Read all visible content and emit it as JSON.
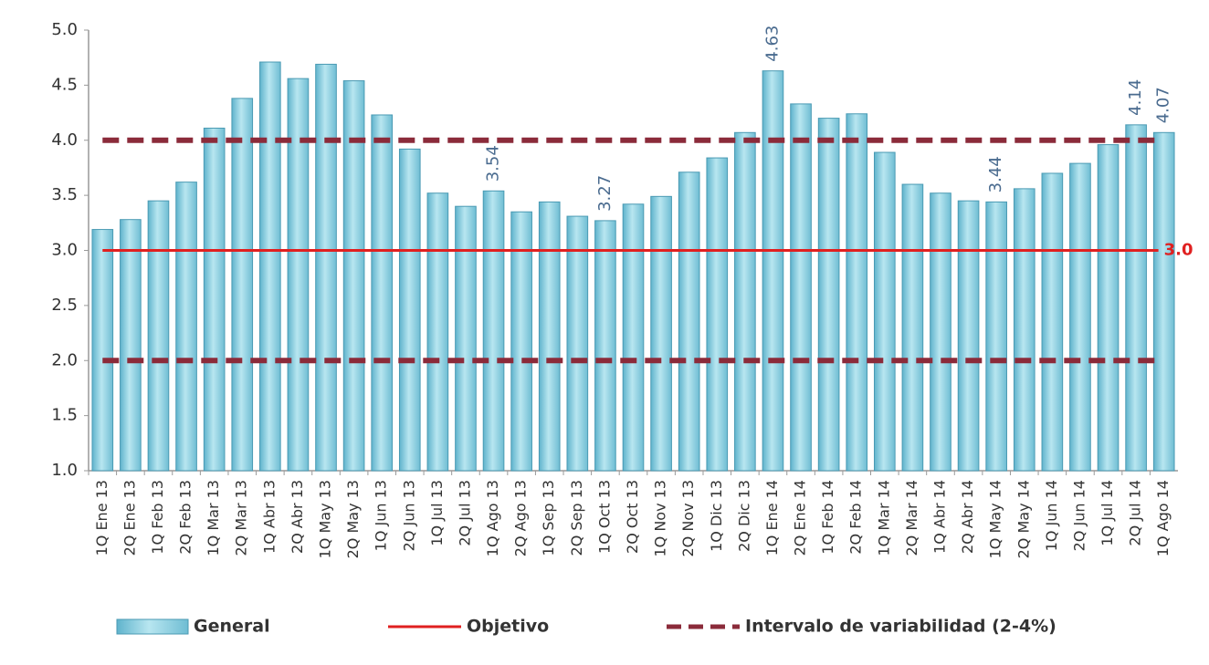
{
  "chart_data": {
    "type": "bar",
    "categories": [
      "1Q Ene 13",
      "2Q Ene 13",
      "1Q Feb 13",
      "2Q Feb 13",
      "1Q Mar 13",
      "2Q Mar 13",
      "1Q Abr 13",
      "2Q Abr 13",
      "1Q May 13",
      "2Q May 13",
      "1Q Jun 13",
      "2Q Jun 13",
      "1Q Jul 13",
      "2Q Jul 13",
      "1Q Ago 13",
      "2Q Ago 13",
      "1Q Sep 13",
      "2Q Sep 13",
      "1Q Oct 13",
      "2Q Oct 13",
      "1Q Nov 13",
      "2Q Nov 13",
      "1Q Dic 13",
      "2Q Dic 13",
      "1Q Ene 14",
      "2Q Ene 14",
      "1Q Feb 14",
      "2Q Feb 14",
      "1Q Mar 14",
      "2Q Mar 14",
      "1Q Abr 14",
      "2Q Abr 14",
      "1Q May 14",
      "2Q May 14",
      "1Q Jun 14",
      "2Q Jun 14",
      "1Q Jul 14",
      "2Q Jul 14",
      "1Q Ago 14"
    ],
    "series": [
      {
        "name": "General",
        "color": "#7cc8dc",
        "values": [
          3.19,
          3.28,
          3.45,
          3.62,
          4.11,
          4.38,
          4.71,
          4.56,
          4.69,
          4.54,
          4.23,
          3.92,
          3.52,
          3.4,
          3.54,
          3.35,
          3.44,
          3.31,
          3.27,
          3.42,
          3.49,
          3.71,
          3.84,
          4.07,
          4.63,
          4.33,
          4.2,
          4.24,
          3.89,
          3.6,
          3.52,
          3.45,
          3.44,
          3.56,
          3.7,
          3.79,
          3.96,
          4.14,
          4.07
        ],
        "value_labels": [
          null,
          null,
          null,
          null,
          null,
          null,
          null,
          null,
          null,
          null,
          null,
          null,
          null,
          null,
          "3.54",
          null,
          null,
          null,
          "3.27",
          null,
          null,
          null,
          null,
          null,
          "4.63",
          null,
          null,
          null,
          null,
          null,
          null,
          null,
          "3.44",
          null,
          null,
          null,
          null,
          "4.14",
          "4.07"
        ]
      }
    ],
    "reference_lines": [
      {
        "name": "Objetivo",
        "color": "#e02020",
        "style": "solid",
        "values": [
          3
        ],
        "value_labels": [
          "3.0"
        ]
      },
      {
        "name": "Intervalo de variabilidad (2-4%)",
        "color": "#8b2b3a",
        "style": "dashed",
        "values": [
          2,
          4
        ]
      }
    ],
    "ylim": [
      1,
      5
    ],
    "yticks": [
      {
        "value": 1,
        "label": "1.0"
      },
      {
        "value": 1.5,
        "label": "1.5"
      },
      {
        "value": 2,
        "label": "2.0"
      },
      {
        "value": 2.5,
        "label": "2.5"
      },
      {
        "value": 3,
        "label": "3.0"
      },
      {
        "value": 3.5,
        "label": "3.5"
      },
      {
        "value": 4,
        "label": "4.0"
      },
      {
        "value": 4.5,
        "label": "4.5"
      },
      {
        "value": 5,
        "label": "5.0"
      }
    ],
    "grid": false
  }
}
